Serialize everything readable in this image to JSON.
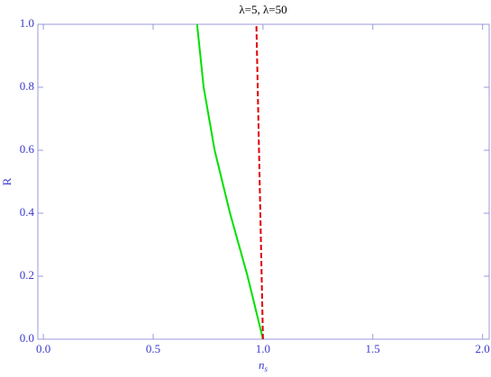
{
  "chart_data": {
    "type": "line",
    "title": "λ=5, λ=50",
    "xlabel": {
      "base": "n",
      "sub": "s"
    },
    "ylabel": "R",
    "xlim": [
      -0.025,
      2.03
    ],
    "ylim": [
      0,
      1
    ],
    "xticks": [
      {
        "value": 0,
        "label": "0.0"
      },
      {
        "value": 0.5,
        "label": "0.5"
      },
      {
        "value": 1,
        "label": "1.0"
      },
      {
        "value": 1.5,
        "label": "1.5"
      },
      {
        "value": 2,
        "label": "2.0"
      }
    ],
    "yticks": [
      {
        "value": 0,
        "label": "0.0"
      },
      {
        "value": 0.2,
        "label": "0.2"
      },
      {
        "value": 0.4,
        "label": "0.4"
      },
      {
        "value": 0.6,
        "label": "0.6"
      },
      {
        "value": 0.8,
        "label": "0.8"
      },
      {
        "value": 1,
        "label": "1.0"
      }
    ],
    "series": [
      {
        "color": "#00e000",
        "dashed": false,
        "x": [
          1.0,
          0.93,
          0.85,
          0.78,
          0.73,
          0.7
        ],
        "values": [
          0,
          0.2,
          0.4,
          0.6,
          0.8,
          1.0
        ]
      },
      {
        "color": "#e00000",
        "dashed": true,
        "x": [
          1.0,
          0.97
        ],
        "values": [
          0,
          1.0
        ]
      }
    ]
  }
}
